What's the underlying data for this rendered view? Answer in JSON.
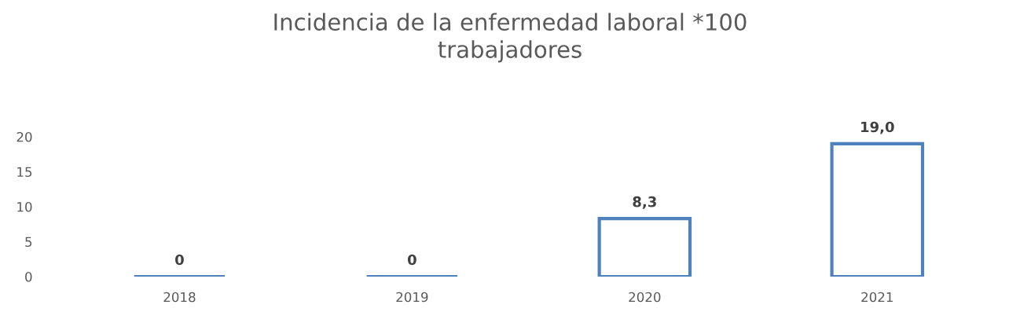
{
  "chart_data": {
    "type": "bar",
    "title": "Incidencia de la enfermedad laboral *100\ntrabajadores",
    "categories": [
      "2018",
      "2019",
      "2020",
      "2021"
    ],
    "series": [
      {
        "color": "#4f81bd",
        "values": [
          0,
          0,
          8.3,
          19.0
        ],
        "value_labels": [
          "0",
          "0",
          "8,3",
          "19,0"
        ]
      }
    ],
    "ylim": [
      0,
      20
    ],
    "yticks": [
      0,
      5,
      10,
      15,
      20
    ],
    "grid": false
  }
}
